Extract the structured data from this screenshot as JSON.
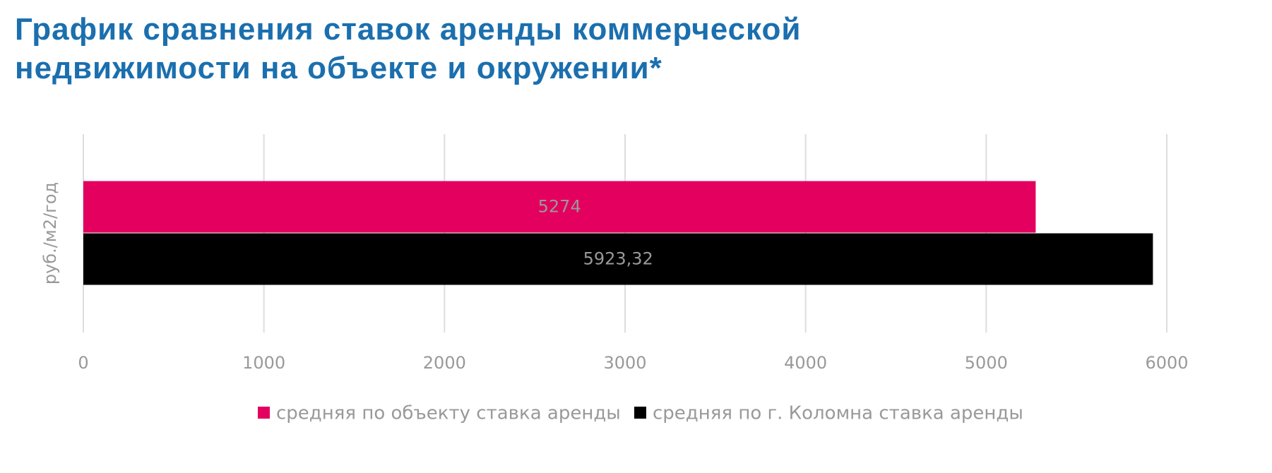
{
  "chart_data": {
    "type": "hbar",
    "title": "График сравнения ставок аренды коммерческой недвижимости на объекте и окружении*",
    "categories": [
      "руб./м2/год"
    ],
    "series": [
      {
        "name": "средняя по объекту ставка аренды",
        "color": "#e3005f",
        "values": [
          5274
        ]
      },
      {
        "name": "средняя по г. Коломна ставка аренды",
        "color": "#000000",
        "values": [
          5923.32
        ],
        "value_labels": [
          "5923,32"
        ]
      }
    ],
    "xlim": [
      0,
      6000
    ],
    "xticks": [
      0,
      1000,
      2000,
      3000,
      4000,
      5000,
      6000
    ],
    "grid": true,
    "legend": "bottom"
  }
}
